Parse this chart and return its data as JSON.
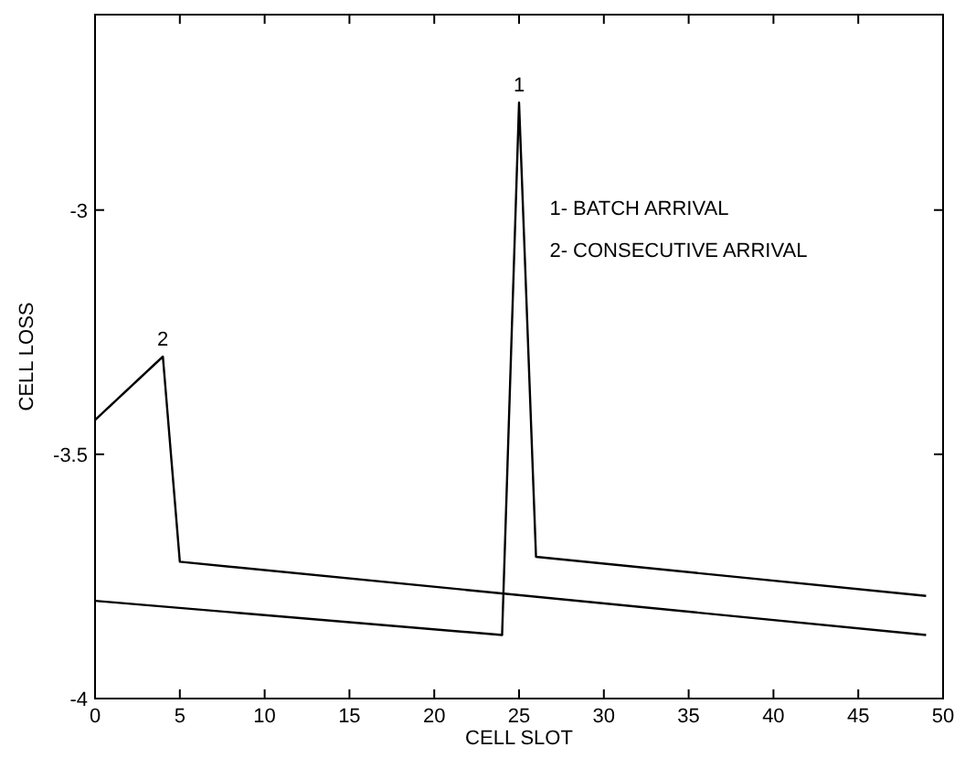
{
  "chart_data": {
    "type": "line",
    "xlabel": "CELL SLOT",
    "ylabel": "CELL LOSS",
    "xlim": [
      0,
      50
    ],
    "ylim": [
      -4,
      -2.6
    ],
    "xticks": [
      0,
      5,
      10,
      15,
      20,
      25,
      30,
      35,
      40,
      45,
      50
    ],
    "yticks": [
      -4,
      -3.5,
      -3
    ],
    "series": [
      {
        "name": "1",
        "color": "#000000",
        "x": [
          0,
          24,
          25,
          26,
          49
        ],
        "values": [
          -3.8,
          -3.87,
          -2.78,
          -3.71,
          -3.79
        ]
      },
      {
        "name": "2",
        "color": "#000000",
        "x": [
          0,
          4,
          5,
          49
        ],
        "values": [
          -3.43,
          -3.3,
          -3.72,
          -3.87
        ]
      }
    ],
    "annotations": [
      "1- BATCH ARRIVAL",
      "2- CONSECUTIVE ARRIVAL"
    ],
    "grid": false,
    "marker": "none",
    "line_style": "solid"
  }
}
